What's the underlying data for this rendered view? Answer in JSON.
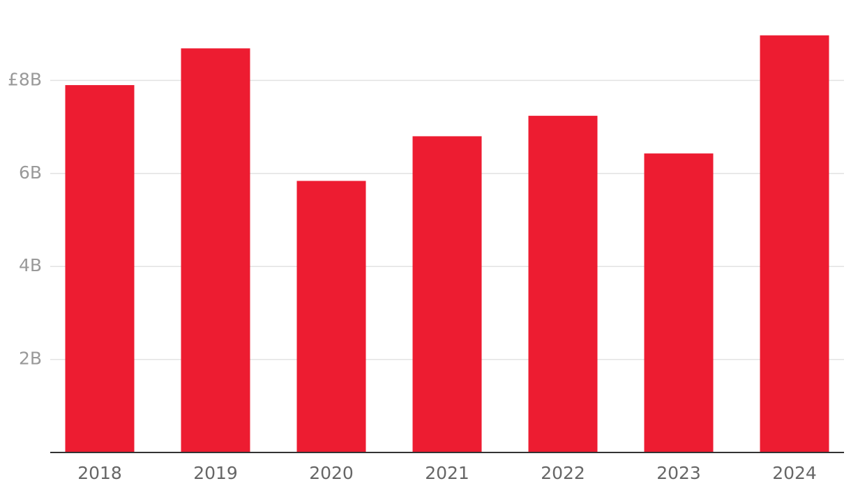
{
  "chart_data": {
    "type": "bar",
    "categories": [
      "2018",
      "2019",
      "2020",
      "2021",
      "2022",
      "2023",
      "2024"
    ],
    "values": [
      7900000000,
      8690000000,
      5840000000,
      6800000000,
      7240000000,
      6430000000,
      8970000000
    ],
    "color": "#ed1c31",
    "ylim": [
      0,
      9700000000
    ],
    "yticks": [
      {
        "value": 2000000000,
        "label": "2B"
      },
      {
        "value": 4000000000,
        "label": "4B"
      },
      {
        "value": 6000000000,
        "label": "6B"
      },
      {
        "value": 8000000000,
        "label": "£8B"
      }
    ],
    "grid": true
  }
}
